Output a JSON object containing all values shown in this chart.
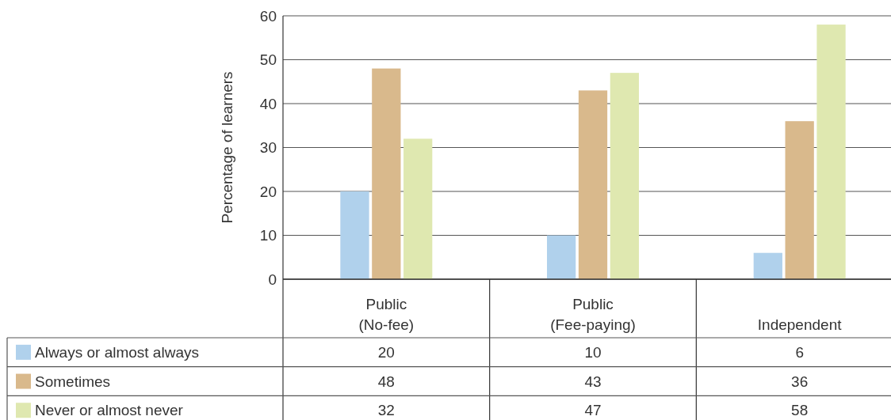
{
  "chart_data": {
    "type": "bar",
    "ylabel": "Percentage of learners",
    "categories": [
      "Public\n(No-fee)",
      "Public\n(Fee-paying)",
      "Independent"
    ],
    "series": [
      {
        "name": "Always or almost always",
        "color": "#b0d1ec",
        "values": [
          20,
          10,
          6
        ]
      },
      {
        "name": "Sometimes",
        "color": "#d9b98c",
        "values": [
          48,
          43,
          36
        ]
      },
      {
        "name": "Never or almost never",
        "color": "#dfe8b0",
        "values": [
          32,
          47,
          58
        ]
      }
    ],
    "ylim": [
      0,
      60
    ],
    "yticks": [
      0,
      10,
      20,
      30,
      40,
      50,
      60
    ],
    "grid": "y",
    "legend": "bottom left",
    "data_labels": true
  }
}
